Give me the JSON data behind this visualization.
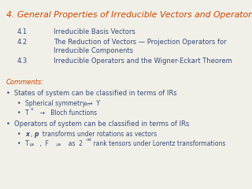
{
  "title": "4. General Properties of Irreducible Vectors and Operators",
  "title_color": "#cc4400",
  "bg_color": "#f0f0e8",
  "text_color": "#3a4a7a",
  "comments_color": "#cc4400",
  "section_items": [
    {
      "num": "4.1",
      "text": "Irreducible Basis Vectors",
      "wrap": false
    },
    {
      "num": "4.2",
      "text": "The Reduction of Vectors — Projection Operators for",
      "wrap": true,
      "wrap2": "Irreducible Components"
    },
    {
      "num": "4.3",
      "text": "Irreducible Operators and the Wigner-Eckart Theorem",
      "wrap": false
    }
  ],
  "title_fs": 7.8,
  "body_fs": 6.0,
  "sub_fs": 5.5,
  "super_fs": 3.8
}
